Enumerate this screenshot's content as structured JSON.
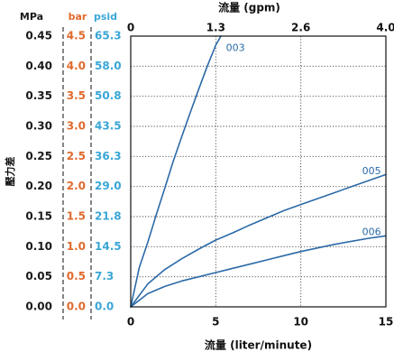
{
  "colors": {
    "mpa": "#1a1a1a",
    "bar": "#e06a2c",
    "psid": "#3aa6d6",
    "curve": "#2b6aa8",
    "axis": "#111111",
    "grid": "#444444"
  },
  "chart_data": {
    "type": "line",
    "title": "",
    "xlabel": "流量 (liter/minute)",
    "x2label": "流量 (gpm)",
    "ylabel": "壓力差",
    "xlim": [
      0,
      15
    ],
    "ylim": [
      0,
      0.45
    ],
    "x_ticks": [
      "0",
      "5",
      "10",
      "15"
    ],
    "x2_ticks": [
      "0",
      "1.3",
      "2.6",
      "4.0"
    ],
    "y_units": {
      "mpa": "MPa",
      "bar": "bar",
      "psid": "psid"
    },
    "y_ticks": {
      "mpa": [
        "0.00",
        "0.05",
        "0.10",
        "0.15",
        "0.20",
        "0.25",
        "0.30",
        "0.35",
        "0.40",
        "0.45"
      ],
      "bar": [
        "0.0",
        "0.5",
        "1.0",
        "1.5",
        "2.0",
        "2.5",
        "3.0",
        "3.5",
        "4.0",
        "4.5"
      ],
      "psid": [
        "0.0",
        "7.3",
        "14.5",
        "21.8",
        "29.0",
        "36.3",
        "43.5",
        "50.8",
        "58.0",
        "65.3"
      ]
    },
    "grid": true,
    "series": [
      {
        "name": "003",
        "x": [
          0,
          0.5,
          1,
          1.5,
          2,
          2.5,
          3,
          3.5,
          4,
          4.5,
          5,
          5.3
        ],
        "y": [
          0,
          0.065,
          0.107,
          0.153,
          0.197,
          0.242,
          0.283,
          0.323,
          0.362,
          0.4,
          0.435,
          0.45
        ]
      },
      {
        "name": "005",
        "x": [
          0,
          1,
          2,
          3,
          4,
          5,
          6,
          7,
          8,
          9,
          10,
          11,
          12,
          13,
          14,
          15
        ],
        "y": [
          0,
          0.038,
          0.062,
          0.08,
          0.096,
          0.111,
          0.123,
          0.136,
          0.148,
          0.16,
          0.17,
          0.18,
          0.19,
          0.2,
          0.21,
          0.22
        ]
      },
      {
        "name": "006",
        "x": [
          0,
          1,
          2,
          3,
          4,
          5,
          6,
          7,
          8,
          9,
          10,
          11,
          12,
          13,
          14,
          15
        ],
        "y": [
          0,
          0.022,
          0.034,
          0.043,
          0.05,
          0.057,
          0.064,
          0.071,
          0.078,
          0.085,
          0.092,
          0.098,
          0.104,
          0.109,
          0.114,
          0.118
        ]
      }
    ],
    "series_label_anchor": {
      "003": [
        5.6,
        0.43
      ],
      "005": [
        13.6,
        0.225
      ],
      "006": [
        13.6,
        0.124
      ]
    }
  }
}
